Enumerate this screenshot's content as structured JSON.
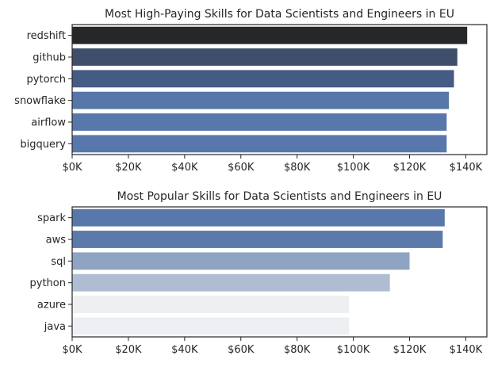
{
  "chart_data": [
    {
      "type": "bar",
      "orientation": "horizontal",
      "title": "Most High-Paying Skills for Data Scientists and Engineers in EU",
      "xlabel": "",
      "ylabel": "",
      "categories": [
        "redshift",
        "github",
        "pytorch",
        "snowflake",
        "airflow",
        "bigquery"
      ],
      "values": [
        140500,
        137000,
        135800,
        134000,
        133200,
        133200
      ],
      "colors": [
        "#262729",
        "#3f4f6b",
        "#445b84",
        "#5676a8",
        "#5877aa",
        "#5877aa"
      ],
      "xlim": [
        0,
        147500
      ],
      "xticks": [
        0,
        20000,
        40000,
        60000,
        80000,
        100000,
        120000,
        140000
      ],
      "xtick_labels": [
        "$0K",
        "$20K",
        "$40K",
        "$60K",
        "$80K",
        "$100K",
        "$120K",
        "$140K"
      ],
      "grid": false,
      "legend": "none"
    },
    {
      "type": "bar",
      "orientation": "horizontal",
      "title": "Most Popular Skills for Data Scientists and Engineers in EU",
      "xlabel": "",
      "ylabel": "",
      "categories": [
        "spark",
        "aws",
        "sql",
        "python",
        "azure",
        "java"
      ],
      "values": [
        132500,
        131800,
        120000,
        113000,
        98500,
        98500
      ],
      "colors": [
        "#5877aa",
        "#5b7aab",
        "#8fa3c2",
        "#aebdd2",
        "#eeeff2",
        "#eeeff2"
      ],
      "xlim": [
        0,
        147500
      ],
      "xticks": [
        0,
        20000,
        40000,
        60000,
        80000,
        100000,
        120000,
        140000
      ],
      "xtick_labels": [
        "$0K",
        "$20K",
        "$40K",
        "$60K",
        "$80K",
        "$100K",
        "$120K",
        "$140K"
      ],
      "grid": false,
      "legend": "none"
    }
  ]
}
